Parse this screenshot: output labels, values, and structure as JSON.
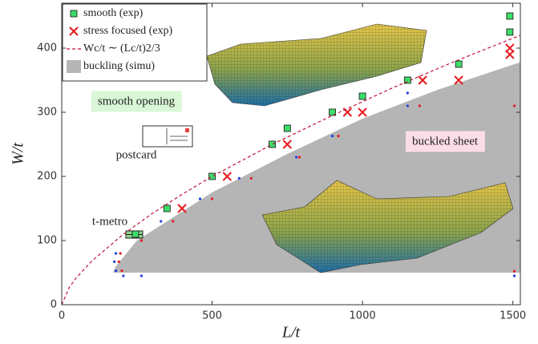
{
  "chart_data": {
    "type": "scatter",
    "xlabel": "L/t",
    "ylabel": "W/t",
    "xlim": [
      0,
      1525
    ],
    "ylim": [
      0,
      470
    ],
    "xticks": [
      0,
      500,
      1000,
      1500
    ],
    "yticks": [
      0,
      100,
      200,
      300,
      400
    ],
    "series": [
      {
        "name": "smooth (exp)",
        "marker": "square",
        "color": "#3ddc6a",
        "x": [
          245,
          350,
          500,
          700,
          750,
          900,
          1000,
          1150,
          1320,
          1490,
          1490
        ],
        "values": [
          110,
          150,
          200,
          250,
          275,
          300,
          325,
          350,
          375,
          450,
          425
        ]
      },
      {
        "name": "stress focused (exp)",
        "marker": "x",
        "color": "#e8191f",
        "x": [
          400,
          550,
          750,
          950,
          1000,
          1200,
          1320,
          1490,
          1490
        ],
        "values": [
          150,
          200,
          250,
          300,
          300,
          350,
          350,
          400,
          390
        ]
      },
      {
        "name": "Wc/t ∼ (Lc/t)2/3",
        "marker": "dashed-line",
        "color": "#c0143c",
        "x": [
          0,
          25,
          50,
          100,
          200,
          300,
          400,
          500,
          700,
          900,
          1100,
          1300,
          1525
        ],
        "values": [
          0,
          27,
          43,
          68,
          108,
          142,
          172,
          200,
          250,
          295,
          338,
          378,
          420
        ]
      },
      {
        "marker": "dot",
        "color": "#1f3fe0",
        "x": [
          180,
          175,
          180,
          205,
          265,
          330,
          460,
          590,
          780,
          900,
          1150,
          1150,
          1505
        ],
        "values": [
          80,
          67,
          53,
          45,
          45,
          130,
          165,
          197,
          230,
          263,
          310,
          330,
          45
        ]
      },
      {
        "marker": "dot",
        "color": "#e8191f",
        "x": [
          195,
          190,
          200,
          265,
          370,
          500,
          630,
          790,
          920,
          1190,
          1505,
          1505
        ],
        "values": [
          80,
          67,
          53,
          100,
          130,
          165,
          197,
          230,
          263,
          310,
          310,
          52
        ]
      }
    ],
    "region": {
      "name": "buckling (simu)",
      "color": "#b5b5b5",
      "x": [
        170,
        180,
        250,
        500,
        750,
        1000,
        1250,
        1525
      ],
      "upper": [
        50,
        60,
        100,
        175,
        235,
        290,
        335,
        378
      ],
      "floor": 50
    },
    "annotations": [
      {
        "text": "smooth opening"
      },
      {
        "text": "buckled sheet"
      },
      {
        "text": "postcard"
      },
      {
        "text": "t-metro"
      }
    ]
  }
}
